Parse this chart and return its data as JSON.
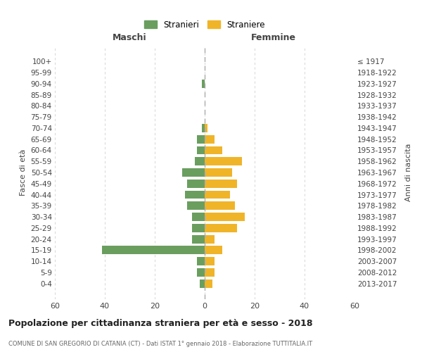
{
  "age_groups": [
    "0-4",
    "5-9",
    "10-14",
    "15-19",
    "20-24",
    "25-29",
    "30-34",
    "35-39",
    "40-44",
    "45-49",
    "50-54",
    "55-59",
    "60-64",
    "65-69",
    "70-74",
    "75-79",
    "80-84",
    "85-89",
    "90-94",
    "95-99",
    "100+"
  ],
  "birth_years": [
    "2013-2017",
    "2008-2012",
    "2003-2007",
    "1998-2002",
    "1993-1997",
    "1988-1992",
    "1983-1987",
    "1978-1982",
    "1973-1977",
    "1968-1972",
    "1963-1967",
    "1958-1962",
    "1953-1957",
    "1948-1952",
    "1943-1947",
    "1938-1942",
    "1933-1937",
    "1928-1932",
    "1923-1927",
    "1918-1922",
    "≤ 1917"
  ],
  "maschi": [
    2,
    3,
    3,
    41,
    5,
    5,
    5,
    7,
    8,
    7,
    9,
    4,
    3,
    3,
    1,
    0,
    0,
    0,
    1,
    0,
    0
  ],
  "femmine": [
    3,
    4,
    4,
    7,
    4,
    13,
    16,
    12,
    10,
    13,
    11,
    15,
    7,
    4,
    1,
    0,
    0,
    0,
    0,
    0,
    0
  ],
  "maschi_color": "#6a9e5f",
  "femmine_color": "#f0b429",
  "title": "Popolazione per cittadinanza straniera per età e sesso - 2018",
  "subtitle": "COMUNE DI SAN GREGORIO DI CATANIA (CT) - Dati ISTAT 1° gennaio 2018 - Elaborazione TUTTITALIA.IT",
  "xlabel_left": "Maschi",
  "xlabel_right": "Femmine",
  "ylabel": "Fasce di età",
  "ylabel_right": "Anni di nascita",
  "legend_maschi": "Stranieri",
  "legend_femmine": "Straniere",
  "xlim": 60,
  "background_color": "#ffffff",
  "grid_color": "#d0d0d0"
}
